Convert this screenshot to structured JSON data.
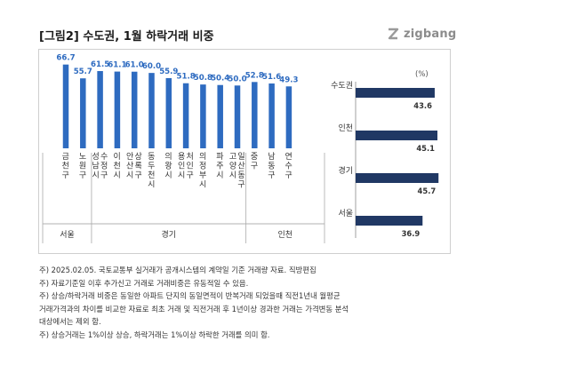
{
  "title": "[그림2] 수도권, 1월 하락거래 비중",
  "logo": {
    "text": "zigbang",
    "icon": "zigbang-logo-icon"
  },
  "chart_data": [
    {
      "type": "bar",
      "orientation": "vertical",
      "categories": [
        "금천구",
        "노원구",
        "성남시 수정구",
        "이천시",
        "안산시 상록구",
        "동두천시",
        "의왕시",
        "용인시 처인구",
        "의정부시",
        "파주시",
        "고양시 일산동구",
        "중구",
        "남동구",
        "연수구"
      ],
      "values": [
        66.7,
        55.7,
        61.5,
        61.1,
        61.0,
        60.0,
        55.9,
        51.8,
        50.8,
        50.4,
        50.0,
        52.8,
        51.6,
        49.3
      ],
      "value_labels": [
        "66.7",
        "55.7",
        "61.5",
        "61.1",
        "61.0",
        "60.0",
        "55.9",
        "51.8",
        "50.8",
        "50.4",
        "50.0",
        "52.8",
        "51.6",
        "49.3"
      ],
      "groups": [
        {
          "label": "서울",
          "start": 0,
          "end": 1
        },
        {
          "label": "경기",
          "start": 2,
          "end": 10
        },
        {
          "label": "인천",
          "start": 11,
          "end": 13
        }
      ],
      "bar_color": "#2e6bc0",
      "label_color": "#2e6bc0",
      "ylim": [
        0,
        70
      ]
    },
    {
      "type": "bar",
      "orientation": "horizontal",
      "unit": "(%)",
      "categories": [
        "수도권",
        "인천",
        "경기",
        "서울"
      ],
      "values": [
        43.6,
        45.1,
        45.7,
        36.9
      ],
      "value_labels": [
        "43.6",
        "45.1",
        "45.7",
        "36.9"
      ],
      "bar_color": "#203864",
      "xlim": [
        0,
        50
      ]
    }
  ],
  "notes": [
    "주) 2025.02.05. 국토교통부 실거래가 공개시스템의 계약일 기준 거래량  자료. 직방편집",
    "주) 자료기준일 이후 추가신고 거래로 거래비중은 유동적일 수 있음.",
    "주) 상승/하락거래 비중은 동일한 아파트 단지의 동일면적이 반복거래 되었을때 직전1년내 월평균",
    "거래가격과의 차이를 비교한 자료로 최초 거래 및 직전거래 후 1년이상 경과한 거래는 가격변동 분석",
    "대상에서는 제외 함.",
    "주) 상승거래는 1%이상 상승, 하락거래는 1%이상 하락한 거래를 의미 함."
  ]
}
